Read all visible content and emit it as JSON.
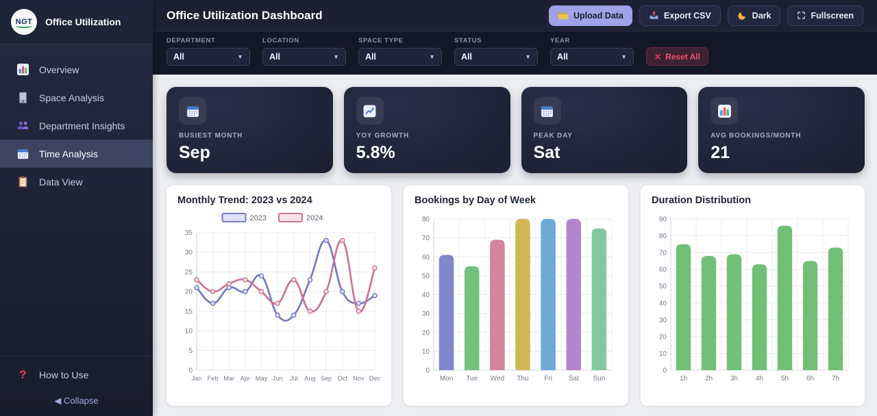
{
  "sidebar": {
    "logo_text": "NGT",
    "app_name": "Office Utilization",
    "items": [
      {
        "label": "Overview",
        "icon": "bar-chart-icon",
        "active": false
      },
      {
        "label": "Space Analysis",
        "icon": "building-icon",
        "active": false
      },
      {
        "label": "Department Insights",
        "icon": "people-icon",
        "active": false
      },
      {
        "label": "Time Analysis",
        "icon": "calendar-icon",
        "active": true
      },
      {
        "label": "Data View",
        "icon": "clipboard-icon",
        "active": false
      }
    ],
    "help": {
      "icon": "?",
      "label": "How to Use"
    },
    "collapse": {
      "icon": "◀",
      "label": "Collapse"
    }
  },
  "header": {
    "title": "Office Utilization Dashboard",
    "buttons": [
      {
        "label": "Upload Data",
        "icon": "folder-icon",
        "style": "primary"
      },
      {
        "label": "Export CSV",
        "icon": "export-icon",
        "style": "dark"
      },
      {
        "label": "Dark",
        "icon": "moon-icon",
        "style": "dark"
      },
      {
        "label": "Fullscreen",
        "icon": "fullscreen-icon",
        "style": "dark"
      }
    ]
  },
  "filters": {
    "dropdown_arrow": "▼",
    "fields": [
      {
        "label": "DEPARTMENT",
        "value": "All"
      },
      {
        "label": "LOCATION",
        "value": "All"
      },
      {
        "label": "SPACE TYPE",
        "value": "All"
      },
      {
        "label": "STATUS",
        "value": "All"
      },
      {
        "label": "YEAR",
        "value": "All"
      }
    ],
    "reset": {
      "icon": "✕",
      "label": "Reset All"
    }
  },
  "kpis": [
    {
      "label": "BUSIEST MONTH",
      "value": "Sep",
      "icon": "calendar-icon"
    },
    {
      "label": "YOY GROWTH",
      "value": "5.8%",
      "icon": "chart-up-icon"
    },
    {
      "label": "PEAK DAY",
      "value": "Sat",
      "icon": "calendar-icon"
    },
    {
      "label": "AVG BOOKINGS/MONTH",
      "value": "21",
      "icon": "bar-chart-icon"
    }
  ],
  "chart_data": [
    {
      "type": "line",
      "title": "Monthly Trend: 2023 vs 2024",
      "x": [
        "Jan",
        "Feb",
        "Mar",
        "Apr",
        "May",
        "Jun",
        "Jul",
        "Aug",
        "Sep",
        "Oct",
        "Nov",
        "Dec"
      ],
      "series": [
        {
          "name": "2023",
          "color": "#7578c4",
          "legend_fill": "#e0e1f5",
          "values": [
            21,
            17,
            21,
            20,
            24,
            14,
            14,
            23,
            33,
            20,
            17,
            19
          ]
        },
        {
          "name": "2024",
          "color": "#cc7390",
          "legend_fill": "#f8e3ea",
          "values": [
            23,
            20,
            22,
            23,
            20,
            17,
            23,
            15,
            20,
            33,
            15,
            26
          ]
        }
      ],
      "ylim": [
        0,
        35
      ],
      "ystep": 5,
      "grid": true,
      "legend_position": "top"
    },
    {
      "type": "bar",
      "title": "Bookings by Day of Week",
      "categories": [
        "Mon",
        "Tue",
        "Wed",
        "Thu",
        "Fri",
        "Sat",
        "Sun"
      ],
      "values": [
        61,
        55,
        69,
        80,
        80,
        80,
        75
      ],
      "colors": [
        "#8187c9",
        "#74c17e",
        "#d4849b",
        "#cfb657",
        "#6fa9da",
        "#b286cc",
        "#83c79f"
      ],
      "ylim": [
        0,
        80
      ],
      "ystep": 10,
      "grid": true
    },
    {
      "type": "bar",
      "title": "Duration Distribution",
      "categories": [
        "1h",
        "2h",
        "3h",
        "4h",
        "5h",
        "6h",
        "7h"
      ],
      "values": [
        75,
        68,
        69,
        63,
        86,
        65,
        73
      ],
      "colors": [
        "#73bf77"
      ],
      "ylim": [
        0,
        90
      ],
      "ystep": 10,
      "grid": true
    }
  ],
  "theme": {
    "accent": "#9ea3e8",
    "danger": "#ef5d76",
    "sidebar_bg": "#20243a",
    "header_bg": "#1c2032",
    "filterbar_bg": "#141728",
    "content_bg": "#eceef2",
    "card_bg": "#ffffff"
  }
}
